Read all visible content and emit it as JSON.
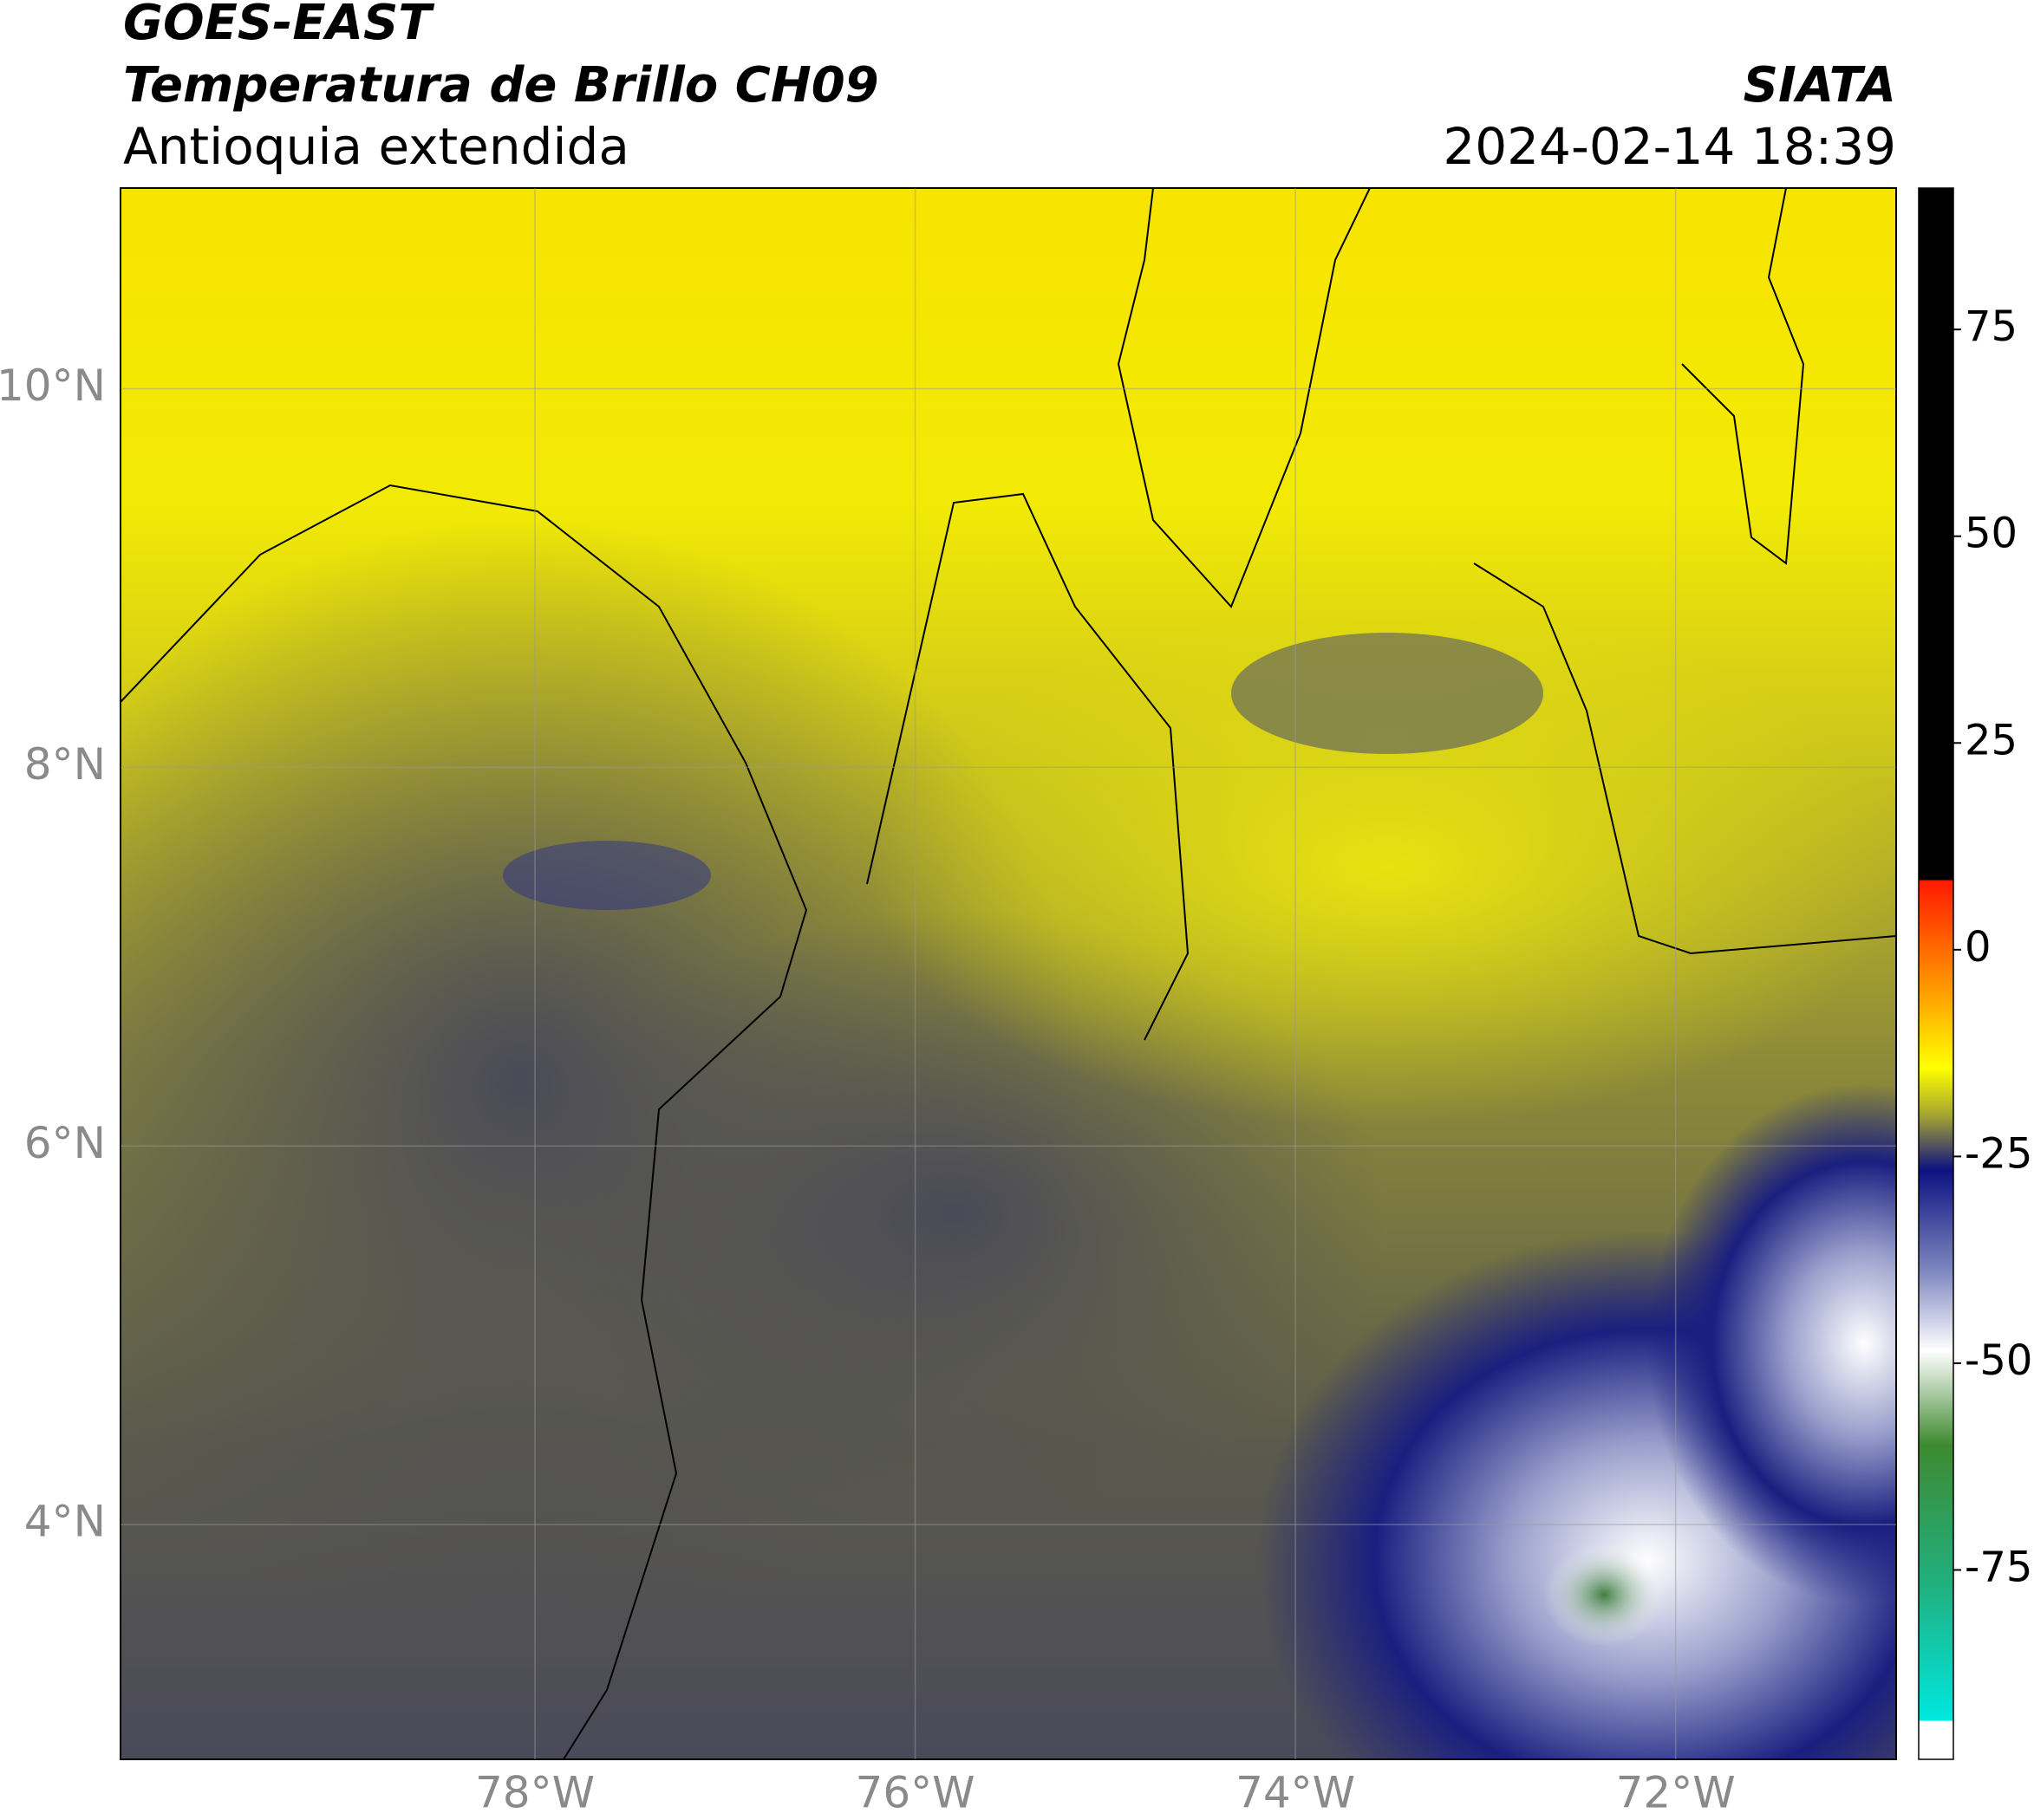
{
  "header": {
    "title": "GOES-EAST",
    "subtitle": "Temperatura de Brillo CH09",
    "region": "Antioquia extendida",
    "source": "SIATA",
    "datetime": "2024-02-14 18:39"
  },
  "map": {
    "xlim": [
      -80.18,
      -70.84
    ],
    "ylim": [
      2.76,
      11.06
    ],
    "xticks": [
      {
        "value": -78,
        "label": "78°W"
      },
      {
        "value": -76,
        "label": "76°W"
      },
      {
        "value": -74,
        "label": "74°W"
      },
      {
        "value": -72,
        "label": "72°W"
      }
    ],
    "yticks": [
      {
        "value": 4,
        "label": "4°N"
      },
      {
        "value": 6,
        "label": "6°N"
      },
      {
        "value": 8,
        "label": "8°N"
      },
      {
        "value": 10,
        "label": "10°N"
      }
    ],
    "grid": true
  },
  "colorbar": {
    "lim": [
      -97.9,
      92.1
    ],
    "ticks": [
      75,
      50,
      25,
      0,
      -25,
      -50,
      -75
    ]
  }
}
